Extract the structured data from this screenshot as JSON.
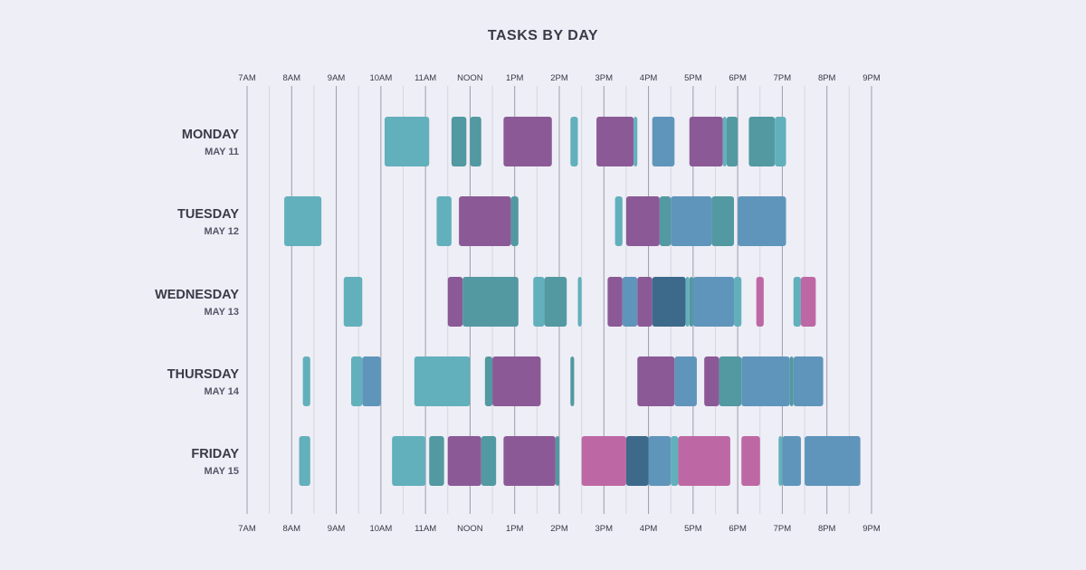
{
  "chart_data": {
    "type": "timeline",
    "title": "TASKS BY DAY",
    "x_ticks": [
      "7AM",
      "8AM",
      "9AM",
      "10AM",
      "11AM",
      "NOON",
      "1PM",
      "2PM",
      "3PM",
      "4PM",
      "5PM",
      "6PM",
      "7PM",
      "8PM",
      "9PM"
    ],
    "x_range": [
      "07:00",
      "21:00"
    ],
    "grid": "hourly lines with lighter half-hour lines",
    "palette": {
      "light_teal": "#62b0bb",
      "dark_teal": "#5299a1",
      "purple": "#8b5a96",
      "blue": "#5f95bb",
      "dark_blue": "#3d6a8b",
      "pink": "#bd68a4"
    },
    "rows": [
      {
        "day": "MONDAY",
        "date": "MAY 11",
        "tasks": [
          [
            "10:05",
            "11:05",
            "light_teal"
          ],
          [
            "11:35",
            "11:55",
            "dark_teal"
          ],
          [
            "12:00",
            "12:15",
            "dark_teal"
          ],
          [
            "12:45",
            "13:50",
            "purple"
          ],
          [
            "14:15",
            "14:25",
            "light_teal"
          ],
          [
            "14:50",
            "15:40",
            "purple"
          ],
          [
            "15:40",
            "15:45",
            "light_teal"
          ],
          [
            "16:05",
            "16:35",
            "blue"
          ],
          [
            "16:55",
            "17:40",
            "purple"
          ],
          [
            "17:40",
            "17:45",
            "light_teal"
          ],
          [
            "17:45",
            "18:00",
            "dark_teal"
          ],
          [
            "18:15",
            "18:50",
            "dark_teal"
          ],
          [
            "18:50",
            "19:05",
            "light_teal"
          ]
        ]
      },
      {
        "day": "TUESDAY",
        "date": "MAY 12",
        "tasks": [
          [
            "07:50",
            "08:40",
            "light_teal"
          ],
          [
            "11:15",
            "11:35",
            "light_teal"
          ],
          [
            "11:45",
            "12:55",
            "purple"
          ],
          [
            "12:55",
            "13:05",
            "dark_teal"
          ],
          [
            "15:15",
            "15:25",
            "light_teal"
          ],
          [
            "15:30",
            "16:15",
            "purple"
          ],
          [
            "16:15",
            "16:30",
            "dark_teal"
          ],
          [
            "16:30",
            "17:25",
            "blue"
          ],
          [
            "17:25",
            "17:55",
            "dark_teal"
          ],
          [
            "18:00",
            "19:05",
            "blue"
          ]
        ]
      },
      {
        "day": "WEDNESDAY",
        "date": "MAY 13",
        "tasks": [
          [
            "09:10",
            "09:35",
            "light_teal"
          ],
          [
            "11:30",
            "11:50",
            "purple"
          ],
          [
            "11:50",
            "13:05",
            "dark_teal"
          ],
          [
            "13:25",
            "13:40",
            "light_teal"
          ],
          [
            "13:40",
            "14:10",
            "dark_teal"
          ],
          [
            "14:25",
            "14:30",
            "light_teal"
          ],
          [
            "15:05",
            "15:25",
            "purple"
          ],
          [
            "15:25",
            "15:45",
            "blue"
          ],
          [
            "15:45",
            "16:05",
            "purple"
          ],
          [
            "16:05",
            "16:50",
            "dark_blue"
          ],
          [
            "16:50",
            "16:55",
            "light_teal"
          ],
          [
            "16:55",
            "17:00",
            "dark_teal"
          ],
          [
            "17:00",
            "17:55",
            "blue"
          ],
          [
            "17:55",
            "18:05",
            "light_teal"
          ],
          [
            "18:25",
            "18:35",
            "pink"
          ],
          [
            "19:15",
            "19:25",
            "light_teal"
          ],
          [
            "19:25",
            "19:45",
            "pink"
          ]
        ]
      },
      {
        "day": "THURSDAY",
        "date": "MAY 14",
        "tasks": [
          [
            "08:15",
            "08:25",
            "light_teal"
          ],
          [
            "09:20",
            "09:35",
            "light_teal"
          ],
          [
            "09:35",
            "10:00",
            "blue"
          ],
          [
            "10:45",
            "12:00",
            "light_teal"
          ],
          [
            "12:20",
            "12:30",
            "dark_teal"
          ],
          [
            "12:30",
            "13:35",
            "purple"
          ],
          [
            "14:15",
            "14:20",
            "dark_teal"
          ],
          [
            "15:45",
            "16:35",
            "purple"
          ],
          [
            "16:35",
            "17:05",
            "blue"
          ],
          [
            "17:15",
            "17:35",
            "purple"
          ],
          [
            "17:35",
            "18:05",
            "dark_teal"
          ],
          [
            "18:05",
            "19:10",
            "blue"
          ],
          [
            "19:10",
            "19:15",
            "dark_teal"
          ],
          [
            "19:15",
            "19:55",
            "blue"
          ]
        ]
      },
      {
        "day": "FRIDAY",
        "date": "MAY 15",
        "tasks": [
          [
            "08:10",
            "08:25",
            "light_teal"
          ],
          [
            "10:15",
            "11:00",
            "light_teal"
          ],
          [
            "11:05",
            "11:25",
            "dark_teal"
          ],
          [
            "11:30",
            "12:15",
            "purple"
          ],
          [
            "12:15",
            "12:35",
            "dark_teal"
          ],
          [
            "12:45",
            "13:55",
            "purple"
          ],
          [
            "13:55",
            "14:00",
            "dark_teal"
          ],
          [
            "14:30",
            "15:30",
            "pink"
          ],
          [
            "15:30",
            "16:00",
            "dark_blue"
          ],
          [
            "16:00",
            "16:30",
            "blue"
          ],
          [
            "16:30",
            "16:40",
            "light_teal"
          ],
          [
            "16:40",
            "17:50",
            "pink"
          ],
          [
            "18:05",
            "18:30",
            "pink"
          ],
          [
            "18:55",
            "19:00",
            "light_teal"
          ],
          [
            "19:00",
            "19:25",
            "blue"
          ],
          [
            "19:30",
            "20:45",
            "blue"
          ]
        ]
      }
    ]
  }
}
